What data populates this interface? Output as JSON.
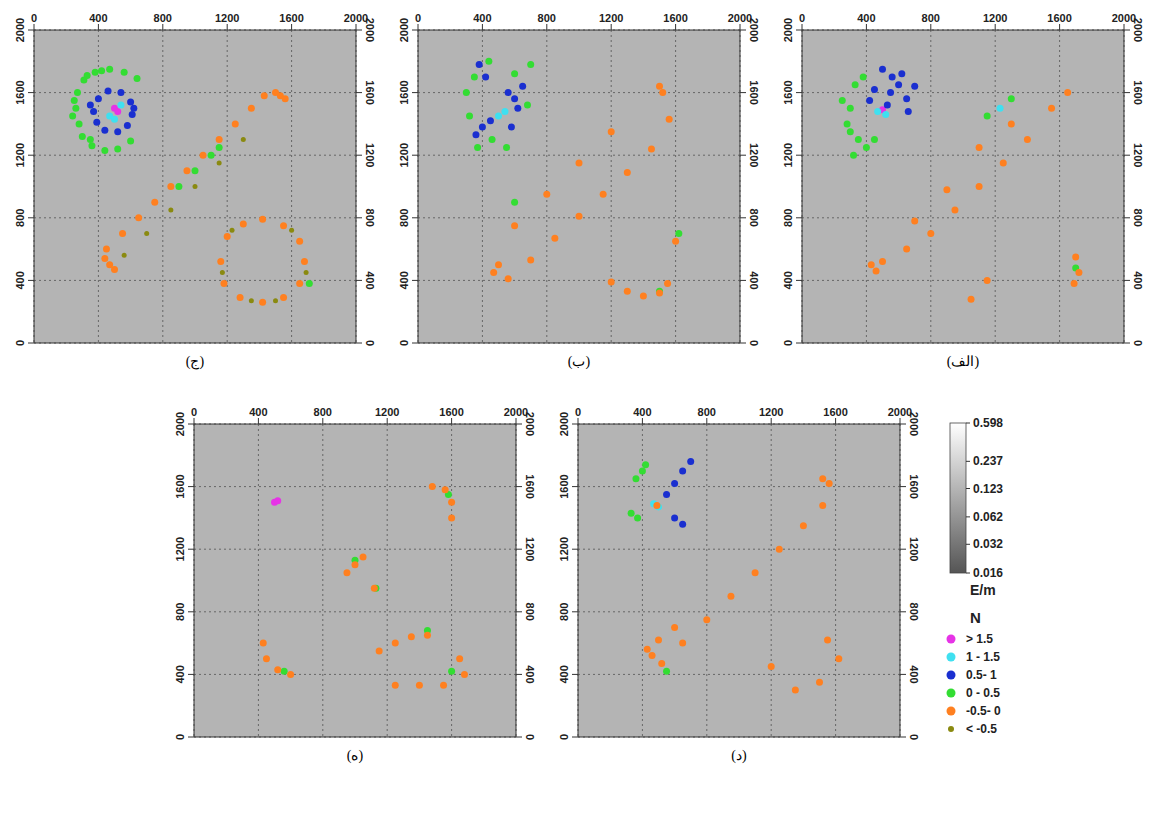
{
  "chart_data": [
    {
      "type": "scatter",
      "title": "(ج)",
      "xlim": [
        0,
        2000
      ],
      "ylim": [
        0,
        2000
      ],
      "xticks": [
        0,
        400,
        800,
        1200,
        1600,
        2000
      ],
      "yticks": [
        0,
        400,
        800,
        1200,
        1600,
        2000
      ],
      "grid": true,
      "series": [
        {
          "name": "> 1.5",
          "color": "#e633e6",
          "x": [
            500,
            520
          ],
          "values": [
            1500,
            1480
          ]
        },
        {
          "name": "1 - 1.5",
          "color": "#3fe0f0",
          "x": [
            470,
            540,
            500
          ],
          "values": [
            1450,
            1520,
            1430
          ]
        },
        {
          "name": "0.5- 1",
          "color": "#1a2fd0",
          "x": [
            370,
            400,
            460,
            540,
            600,
            610,
            580,
            520,
            440,
            390,
            620,
            350
          ],
          "values": [
            1480,
            1560,
            1610,
            1600,
            1540,
            1460,
            1390,
            1350,
            1360,
            1410,
            1500,
            1520
          ]
        },
        {
          "name": "0 - 0.5",
          "color": "#33dd33",
          "x": [
            260,
            270,
            310,
            380,
            470,
            560,
            640,
            280,
            300,
            360,
            440,
            520,
            600,
            240,
            330,
            250,
            420,
            350,
            1000,
            1100,
            900,
            1710,
            1150
          ],
          "values": [
            1500,
            1600,
            1680,
            1730,
            1750,
            1730,
            1690,
            1400,
            1320,
            1260,
            1230,
            1240,
            1290,
            1450,
            1710,
            1550,
            1740,
            1300,
            1100,
            1200,
            1000,
            380,
            1250
          ]
        },
        {
          "name": "-0.5- 0",
          "color": "#ff8020",
          "x": [
            450,
            550,
            650,
            750,
            850,
            950,
            1050,
            1150,
            1250,
            1350,
            1430,
            500,
            470,
            440,
            1500,
            1530,
            1560,
            1160,
            1200,
            1300,
            1420,
            1550,
            1650,
            1680,
            1650,
            1550,
            1420,
            1280,
            1180
          ],
          "values": [
            600,
            700,
            800,
            900,
            1000,
            1100,
            1200,
            1300,
            1400,
            1500,
            1580,
            470,
            500,
            540,
            1600,
            1580,
            1560,
            520,
            680,
            760,
            790,
            750,
            650,
            520,
            380,
            290,
            260,
            290,
            380
          ]
        },
        {
          "name": "< -0.5",
          "color": "#8a8a10",
          "x": [
            560,
            700,
            850,
            1000,
            1150,
            1300,
            1170,
            1230,
            1600,
            1690,
            1350,
            1500
          ],
          "values": [
            560,
            700,
            850,
            1000,
            1150,
            1300,
            450,
            720,
            720,
            450,
            270,
            270
          ]
        }
      ]
    },
    {
      "type": "scatter",
      "title": "(ب)",
      "xlim": [
        0,
        2000
      ],
      "ylim": [
        0,
        2000
      ],
      "xticks": [
        0,
        400,
        800,
        1200,
        1600,
        2000
      ],
      "yticks": [
        0,
        400,
        800,
        1200,
        1600,
        2000
      ],
      "grid": true,
      "series": [
        {
          "name": "> 1.5",
          "color": "#e633e6",
          "x": [],
          "values": []
        },
        {
          "name": "1 - 1.5",
          "color": "#3fe0f0",
          "x": [
            500,
            540
          ],
          "values": [
            1450,
            1480
          ]
        },
        {
          "name": "0.5- 1",
          "color": "#1a2fd0",
          "x": [
            360,
            400,
            450,
            600,
            620,
            580,
            650,
            560,
            380,
            420
          ],
          "values": [
            1330,
            1380,
            1420,
            1560,
            1500,
            1380,
            1640,
            1600,
            1780,
            1700
          ]
        },
        {
          "name": "0 - 0.5",
          "color": "#33dd33",
          "x": [
            350,
            300,
            320,
            370,
            460,
            550,
            700,
            600,
            440,
            680,
            600,
            1620,
            1500
          ],
          "values": [
            1700,
            1600,
            1450,
            1250,
            1300,
            1250,
            1780,
            1720,
            1800,
            1520,
            900,
            700,
            330
          ]
        },
        {
          "name": "-0.5- 0",
          "color": "#ff8020",
          "x": [
            600,
            800,
            1000,
            1200,
            1500,
            1520,
            560,
            700,
            850,
            1000,
            1150,
            1300,
            1450,
            1560,
            470,
            500,
            1300,
            1400,
            1500,
            1550,
            1200,
            1600
          ],
          "values": [
            750,
            950,
            1150,
            1350,
            1640,
            1600,
            410,
            530,
            670,
            810,
            950,
            1090,
            1240,
            1430,
            450,
            500,
            330,
            300,
            320,
            380,
            390,
            650
          ]
        },
        {
          "name": "< -0.5",
          "color": "#8a8a10",
          "x": [],
          "values": []
        }
      ]
    },
    {
      "type": "scatter",
      "title": "(الف)",
      "xlim": [
        0,
        2000
      ],
      "ylim": [
        0,
        2000
      ],
      "xticks": [
        0,
        400,
        800,
        1200,
        1600,
        2000
      ],
      "yticks": [
        0,
        400,
        800,
        1200,
        1600,
        2000
      ],
      "grid": true,
      "series": [
        {
          "name": "> 1.5",
          "color": "#e633e6",
          "x": [
            500
          ],
          "values": [
            1490
          ]
        },
        {
          "name": "1 - 1.5",
          "color": "#3fe0f0",
          "x": [
            470,
            520,
            1230
          ],
          "values": [
            1480,
            1460,
            1500
          ]
        },
        {
          "name": "0.5- 1",
          "color": "#1a2fd0",
          "x": [
            550,
            600,
            650,
            700,
            560,
            620,
            420,
            450,
            530,
            660,
            500
          ],
          "values": [
            1600,
            1650,
            1560,
            1640,
            1700,
            1720,
            1550,
            1620,
            1520,
            1480,
            1750
          ]
        },
        {
          "name": "0 - 0.5",
          "color": "#33dd33",
          "x": [
            300,
            280,
            350,
            250,
            400,
            330,
            380,
            300,
            450,
            320,
            1150,
            1300,
            1700
          ],
          "values": [
            1500,
            1400,
            1300,
            1550,
            1250,
            1650,
            1700,
            1350,
            1300,
            1200,
            1450,
            1560,
            480
          ]
        },
        {
          "name": "-0.5- 0",
          "color": "#ff8020",
          "x": [
            500,
            650,
            800,
            950,
            1100,
            1250,
            1400,
            1550,
            1650,
            700,
            900,
            1100,
            1300,
            460,
            430,
            1700,
            1720,
            1690,
            1150,
            1050
          ],
          "values": [
            520,
            600,
            700,
            850,
            1000,
            1150,
            1300,
            1500,
            1600,
            780,
            980,
            1250,
            1400,
            460,
            500,
            550,
            450,
            380,
            400,
            280
          ]
        },
        {
          "name": "< -0.5",
          "color": "#8a8a10",
          "x": [],
          "values": []
        }
      ]
    },
    {
      "type": "scatter",
      "title": "(ه)",
      "xlim": [
        0,
        2000
      ],
      "ylim": [
        0,
        2000
      ],
      "xticks": [
        0,
        400,
        800,
        1200,
        1600,
        2000
      ],
      "yticks": [
        0,
        400,
        800,
        1200,
        1600,
        2000
      ],
      "grid": true,
      "series": [
        {
          "name": "> 1.5",
          "color": "#e633e6",
          "x": [
            500,
            520
          ],
          "values": [
            1500,
            1510
          ]
        },
        {
          "name": "1 - 1.5",
          "color": "#3fe0f0",
          "x": [],
          "values": []
        },
        {
          "name": "0.5- 1",
          "color": "#1a2fd0",
          "x": [],
          "values": []
        },
        {
          "name": "0 - 0.5",
          "color": "#33dd33",
          "x": [
            1000,
            1130,
            1580,
            1600,
            560,
            1450
          ],
          "values": [
            1130,
            950,
            1550,
            420,
            420,
            680
          ]
        },
        {
          "name": "-0.5- 0",
          "color": "#ff8020",
          "x": [
            430,
            450,
            520,
            600,
            1480,
            1560,
            1600,
            1600,
            1000,
            1050,
            950,
            1120,
            1250,
            1350,
            1450,
            1250,
            1400,
            1550,
            1650,
            1680,
            1150
          ],
          "values": [
            600,
            500,
            430,
            400,
            1600,
            1580,
            1500,
            1400,
            1100,
            1150,
            1050,
            950,
            600,
            640,
            650,
            330,
            330,
            330,
            500,
            400,
            550
          ]
        },
        {
          "name": "< -0.5",
          "color": "#8a8a10",
          "x": [],
          "values": []
        }
      ]
    },
    {
      "type": "scatter",
      "title": "(د)",
      "xlim": [
        0,
        2000
      ],
      "ylim": [
        0,
        2000
      ],
      "xticks": [
        0,
        400,
        800,
        1200,
        1600,
        2000
      ],
      "yticks": [
        0,
        400,
        800,
        1200,
        1600,
        2000
      ],
      "grid": true,
      "series": [
        {
          "name": "> 1.5",
          "color": "#e633e6",
          "x": [],
          "values": []
        },
        {
          "name": "1 - 1.5",
          "color": "#3fe0f0",
          "x": [
            470,
            500
          ],
          "values": [
            1490,
            1470
          ]
        },
        {
          "name": "0.5- 1",
          "color": "#1a2fd0",
          "x": [
            550,
            600,
            650,
            700,
            600,
            650
          ],
          "values": [
            1550,
            1620,
            1700,
            1760,
            1400,
            1360
          ]
        },
        {
          "name": "0 - 0.5",
          "color": "#33dd33",
          "x": [
            330,
            370,
            400,
            360,
            420,
            550
          ],
          "values": [
            1430,
            1400,
            1700,
            1650,
            1740,
            420
          ]
        },
        {
          "name": "-0.5- 0",
          "color": "#ff8020",
          "x": [
            490,
            520,
            650,
            800,
            950,
            1100,
            1250,
            1400,
            1520,
            1560,
            1520,
            430,
            460,
            500,
            600,
            1200,
            1350,
            1500,
            1550,
            1620
          ],
          "values": [
            1480,
            470,
            600,
            750,
            900,
            1050,
            1200,
            1350,
            1480,
            1620,
            1650,
            560,
            520,
            620,
            700,
            450,
            300,
            350,
            620,
            500
          ]
        },
        {
          "name": "< -0.5",
          "color": "#8a8a10",
          "x": [],
          "values": []
        }
      ]
    }
  ],
  "colorbar": {
    "label": "E/m",
    "range": [
      0.016,
      0.598
    ],
    "ticks": [
      0.016,
      0.032,
      0.062,
      0.123,
      0.237,
      0.598
    ],
    "log": true
  },
  "legend_title": "N"
}
